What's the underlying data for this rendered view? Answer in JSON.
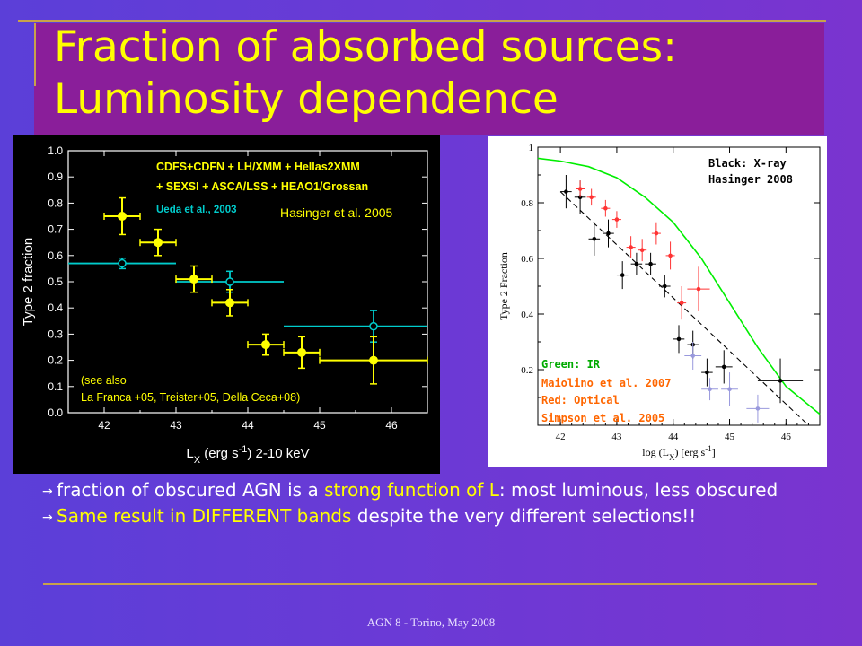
{
  "slide": {
    "title_line1": "Fraction of absorbed sources:",
    "title_line2": "Luminosity dependence",
    "bullet1_a": "fraction of obscured AGN is a ",
    "bullet1_b": "strong function of L",
    "bullet1_c": ": most luminous, less obscured",
    "bullet2_a": "Same result in DIFFERENT bands",
    "bullet2_b": " despite the very different selections!!",
    "footer": "AGN 8 - Torino, May 2008",
    "colors": {
      "title": "#ffff00",
      "line": "#c8a24a",
      "bg_left": "#5b3fd8",
      "bg_right": "#7a34cf",
      "band": "#8a1e9a"
    }
  },
  "chart_data": [
    {
      "type": "scatter",
      "background": "#000000",
      "xlabel": "L_X (erg s^-1) 2-10 keV",
      "ylabel": "Type 2 fraction",
      "xlim": [
        41.5,
        46.5
      ],
      "ylim": [
        0.0,
        1.0
      ],
      "xticks": [
        42,
        43,
        44,
        45,
        46
      ],
      "yticks": [
        0.0,
        0.1,
        0.2,
        0.3,
        0.4,
        0.5,
        0.6,
        0.7,
        0.8,
        0.9,
        1.0
      ],
      "ytick_labels": [
        "0.0",
        "0.1",
        "0.2",
        "0.3",
        "0.4",
        "0.5",
        "0.6",
        "0.7",
        "0.8",
        "0.9",
        "1.0"
      ],
      "annotations": [
        {
          "text": "CDFS+CDFN + LH/XMM + Hellas2XMM",
          "color": "#ffff00"
        },
        {
          "text": "+ SEXSI + ASCA/LSS + HEAO1/Grossan",
          "color": "#ffff00"
        },
        {
          "text": "Ueda et al., 2003",
          "color": "#00cccc"
        },
        {
          "text": "Hasinger et al. 2005",
          "color": "#ffff00"
        },
        {
          "text": "(see also",
          "color": "#ffff00"
        },
        {
          "text": "La Franca +05, Treister+05,  Della Ceca+08)",
          "color": "#ffff00"
        }
      ],
      "series": [
        {
          "color": "#ffff00",
          "marker": "filled-circle",
          "points": [
            {
              "x": 42.25,
              "y": 0.75,
              "xerr": 0.25,
              "yerr": 0.07
            },
            {
              "x": 42.75,
              "y": 0.65,
              "xerr": 0.25,
              "yerr": 0.05
            },
            {
              "x": 43.25,
              "y": 0.51,
              "xerr": 0.25,
              "yerr": 0.05
            },
            {
              "x": 43.75,
              "y": 0.42,
              "xerr": 0.25,
              "yerr": 0.05
            },
            {
              "x": 44.25,
              "y": 0.26,
              "xerr": 0.25,
              "yerr": 0.04
            },
            {
              "x": 44.75,
              "y": 0.23,
              "xerr": 0.25,
              "yerr": 0.06
            },
            {
              "x": 45.75,
              "y": 0.2,
              "xerr": 0.75,
              "yerr": 0.09
            }
          ]
        },
        {
          "color": "#00cccc",
          "marker": "open-circle",
          "points": [
            {
              "x": 42.25,
              "y": 0.57,
              "xlo": 41.5,
              "xhi": 43.0,
              "yerr": 0.02
            },
            {
              "x": 43.75,
              "y": 0.5,
              "xlo": 43.0,
              "xhi": 44.5,
              "yerr": 0.04
            },
            {
              "x": 45.75,
              "y": 0.33,
              "xlo": 44.5,
              "xhi": 46.5,
              "yerr": 0.06
            }
          ]
        }
      ]
    },
    {
      "type": "scatter",
      "background": "#ffffff",
      "xlabel": "log (L_X) [erg s^-1]",
      "ylabel": "Type 2 Fraction",
      "xlim": [
        41.6,
        46.6
      ],
      "ylim": [
        0.0,
        1.0
      ],
      "xticks": [
        42,
        43,
        44,
        45,
        46
      ],
      "yticks": [
        0.2,
        0.4,
        0.6,
        0.8,
        1.0
      ],
      "ytick_labels": [
        "0.2",
        "0.4",
        "0.6",
        "0.8",
        "1"
      ],
      "annotations": [
        {
          "text": "Black:  X-ray",
          "color": "#000000"
        },
        {
          "text": "Hasinger 2008",
          "color": "#000000"
        },
        {
          "text": "Green: IR",
          "color": "#00aa00"
        },
        {
          "text": "Maiolino et al. 2007",
          "color": "#ff6600"
        },
        {
          "text": "Red: Optical",
          "color": "#ff6600"
        },
        {
          "text": "Simpson et al. 2005",
          "color": "#ff6600"
        }
      ],
      "curve": {
        "name": "IR model",
        "color": "#00ee00",
        "x": [
          41.6,
          42.0,
          42.5,
          43.0,
          43.5,
          44.0,
          44.5,
          45.0,
          45.5,
          46.0,
          46.6
        ],
        "y": [
          0.96,
          0.95,
          0.93,
          0.89,
          0.82,
          0.73,
          0.6,
          0.44,
          0.28,
          0.14,
          0.04
        ]
      },
      "dashed_line": {
        "color": "#000000",
        "x": [
          42.0,
          46.4
        ],
        "y": [
          0.84,
          -0.02
        ]
      },
      "series": [
        {
          "color": "#000000",
          "marker": "filled-dot",
          "points": [
            {
              "x": 42.1,
              "y": 0.84,
              "xerr": 0.1,
              "yerr": 0.06
            },
            {
              "x": 42.35,
              "y": 0.82,
              "xerr": 0.1,
              "yerr": 0.06
            },
            {
              "x": 42.6,
              "y": 0.67,
              "xerr": 0.1,
              "yerr": 0.06
            },
            {
              "x": 42.85,
              "y": 0.69,
              "xerr": 0.1,
              "yerr": 0.05
            },
            {
              "x": 43.1,
              "y": 0.54,
              "xerr": 0.1,
              "yerr": 0.05
            },
            {
              "x": 43.35,
              "y": 0.58,
              "xerr": 0.1,
              "yerr": 0.04
            },
            {
              "x": 43.6,
              "y": 0.58,
              "xerr": 0.1,
              "yerr": 0.04
            },
            {
              "x": 43.85,
              "y": 0.5,
              "xerr": 0.1,
              "yerr": 0.04
            },
            {
              "x": 44.1,
              "y": 0.31,
              "xerr": 0.1,
              "yerr": 0.05
            },
            {
              "x": 44.35,
              "y": 0.29,
              "xerr": 0.1,
              "yerr": 0.05
            },
            {
              "x": 44.6,
              "y": 0.19,
              "xerr": 0.1,
              "yerr": 0.05
            },
            {
              "x": 44.9,
              "y": 0.21,
              "xerr": 0.15,
              "yerr": 0.06
            },
            {
              "x": 45.9,
              "y": 0.16,
              "xerr": 0.4,
              "yerr": 0.08
            }
          ]
        },
        {
          "color": "#ff3333",
          "marker": "filled-dot",
          "points": [
            {
              "x": 42.35,
              "y": 0.85,
              "xerr": 0.08,
              "yerr": 0.03
            },
            {
              "x": 42.55,
              "y": 0.82,
              "xerr": 0.08,
              "yerr": 0.03
            },
            {
              "x": 42.8,
              "y": 0.78,
              "xerr": 0.08,
              "yerr": 0.03
            },
            {
              "x": 43.0,
              "y": 0.74,
              "xerr": 0.08,
              "yerr": 0.03
            },
            {
              "x": 43.25,
              "y": 0.64,
              "xerr": 0.08,
              "yerr": 0.04
            },
            {
              "x": 43.45,
              "y": 0.63,
              "xerr": 0.08,
              "yerr": 0.04
            },
            {
              "x": 43.7,
              "y": 0.69,
              "xerr": 0.08,
              "yerr": 0.04
            },
            {
              "x": 43.95,
              "y": 0.61,
              "xerr": 0.08,
              "yerr": 0.05
            },
            {
              "x": 44.15,
              "y": 0.44,
              "xerr": 0.08,
              "yerr": 0.06
            },
            {
              "x": 44.45,
              "y": 0.49,
              "xerr": 0.2,
              "yerr": 0.08
            }
          ]
        },
        {
          "color": "#9999dd",
          "marker": "filled-dot",
          "points": [
            {
              "x": 44.35,
              "y": 0.25,
              "xerr": 0.15,
              "yerr": 0.05
            },
            {
              "x": 44.65,
              "y": 0.13,
              "xerr": 0.15,
              "yerr": 0.04
            },
            {
              "x": 45.0,
              "y": 0.13,
              "xerr": 0.15,
              "yerr": 0.06
            },
            {
              "x": 45.5,
              "y": 0.06,
              "xerr": 0.2,
              "yerr": 0.05
            }
          ]
        }
      ]
    }
  ]
}
